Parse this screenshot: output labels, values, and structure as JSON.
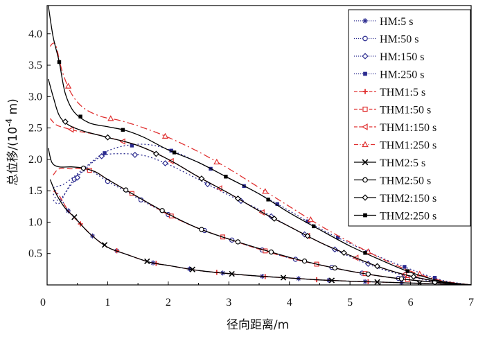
{
  "chart_data": {
    "type": "line",
    "xlabel": "径向距离/m",
    "ylabel_prefix": "总位移/(10",
    "ylabel_exp": "-4",
    "ylabel_suffix": " m)",
    "xlim": [
      0,
      7
    ],
    "ylim": [
      0,
      4.45
    ],
    "xticks": [
      {
        "value": 0,
        "label": "0"
      },
      {
        "value": 1,
        "label": "1"
      },
      {
        "value": 2,
        "label": "2"
      },
      {
        "value": 3,
        "label": "3"
      },
      {
        "value": 4,
        "label": "4"
      },
      {
        "value": 5,
        "label": "5"
      },
      {
        "value": 6,
        "label": "6"
      },
      {
        "value": 7,
        "label": "7"
      }
    ],
    "yticks": [
      {
        "value": 0.5,
        "label": "0.5"
      },
      {
        "value": 1.0,
        "label": "1.0"
      },
      {
        "value": 1.5,
        "label": "1.5"
      },
      {
        "value": 2.0,
        "label": "2.0"
      },
      {
        "value": 2.5,
        "label": "2.5"
      },
      {
        "value": 3.0,
        "label": "3.0"
      },
      {
        "value": 3.5,
        "label": "3.5"
      },
      {
        "value": 4.0,
        "label": "4.0"
      }
    ],
    "grid": false,
    "legend_position": "top-right",
    "series": [
      {
        "name": "HM:5 s",
        "color": "#2b2b8f",
        "dash": "2,3",
        "marker": "asterisk",
        "points": [
          [
            0.1,
            1.55
          ],
          [
            0.2,
            1.42
          ],
          [
            0.35,
            1.18
          ],
          [
            0.5,
            1.02
          ],
          [
            0.75,
            0.78
          ],
          [
            1.0,
            0.6
          ],
          [
            1.3,
            0.49
          ],
          [
            1.7,
            0.36
          ],
          [
            2.0,
            0.31
          ],
          [
            2.5,
            0.23
          ],
          [
            3.0,
            0.18
          ],
          [
            3.5,
            0.14
          ],
          [
            4.0,
            0.11
          ],
          [
            4.5,
            0.08
          ],
          [
            5.0,
            0.06
          ],
          [
            5.5,
            0.045
          ],
          [
            6.0,
            0.03
          ],
          [
            6.5,
            0.015
          ],
          [
            7.0,
            0.0
          ]
        ],
        "marker_x": [
          0.35,
          0.75,
          1.15,
          1.75,
          2.35,
          2.9,
          3.55,
          4.15,
          4.65,
          5.25,
          5.85,
          6.4
        ]
      },
      {
        "name": "HM:50 s",
        "color": "#2b2b8f",
        "dash": "2,3",
        "marker": "circle",
        "points": [
          [
            0.1,
            1.35
          ],
          [
            0.2,
            1.3
          ],
          [
            0.35,
            1.55
          ],
          [
            0.5,
            1.75
          ],
          [
            0.7,
            1.82
          ],
          [
            1.0,
            1.65
          ],
          [
            1.5,
            1.38
          ],
          [
            2.0,
            1.12
          ],
          [
            2.5,
            0.9
          ],
          [
            3.0,
            0.73
          ],
          [
            3.5,
            0.57
          ],
          [
            4.0,
            0.43
          ],
          [
            4.5,
            0.32
          ],
          [
            5.0,
            0.22
          ],
          [
            5.5,
            0.14
          ],
          [
            6.0,
            0.08
          ],
          [
            6.5,
            0.035
          ],
          [
            7.0,
            0.0
          ]
        ],
        "marker_x": [
          0.45,
          1.0,
          1.55,
          2.0,
          2.6,
          3.05,
          3.55,
          4.1,
          4.7,
          5.2,
          5.8
        ]
      },
      {
        "name": "HM:150 s",
        "color": "#2b2b8f",
        "dash": "2,3",
        "marker": "diamond",
        "points": [
          [
            0.1,
            1.45
          ],
          [
            0.2,
            1.35
          ],
          [
            0.4,
            1.6
          ],
          [
            0.6,
            1.82
          ],
          [
            0.9,
            2.05
          ],
          [
            1.2,
            2.09
          ],
          [
            1.6,
            2.06
          ],
          [
            2.0,
            1.92
          ],
          [
            2.5,
            1.68
          ],
          [
            3.0,
            1.43
          ],
          [
            3.5,
            1.2
          ],
          [
            4.0,
            0.93
          ],
          [
            4.5,
            0.68
          ],
          [
            5.0,
            0.45
          ],
          [
            5.5,
            0.26
          ],
          [
            6.0,
            0.13
          ],
          [
            6.5,
            0.04
          ],
          [
            7.0,
            0.0
          ]
        ],
        "marker_x": [
          0.5,
          0.9,
          1.45,
          1.95,
          2.65,
          3.2,
          3.7,
          4.25,
          4.75,
          5.3,
          5.9,
          6.4
        ]
      },
      {
        "name": "HM:250 s",
        "color": "#2b2b8f",
        "dash": "2,3",
        "marker": "square",
        "points": [
          [
            0.1,
            1.55
          ],
          [
            0.3,
            1.62
          ],
          [
            0.6,
            1.85
          ],
          [
            0.9,
            2.08
          ],
          [
            1.2,
            2.2
          ],
          [
            1.6,
            2.24
          ],
          [
            2.0,
            2.16
          ],
          [
            2.5,
            1.95
          ],
          [
            3.0,
            1.7
          ],
          [
            3.5,
            1.45
          ],
          [
            4.0,
            1.18
          ],
          [
            4.5,
            0.9
          ],
          [
            5.0,
            0.66
          ],
          [
            5.5,
            0.44
          ],
          [
            6.0,
            0.25
          ],
          [
            6.5,
            0.08
          ],
          [
            7.0,
            0.0
          ]
        ],
        "marker_x": [
          0.95,
          1.4,
          2.05,
          2.7,
          3.25,
          3.8,
          4.3,
          4.8,
          5.3,
          5.9,
          6.4
        ]
      },
      {
        "name": "THM1:5 s",
        "color": "#e03030",
        "dash": "8,4",
        "marker": "plus",
        "points": [
          [
            0.1,
            1.5
          ],
          [
            0.2,
            1.42
          ],
          [
            0.35,
            1.18
          ],
          [
            0.5,
            1.02
          ],
          [
            0.75,
            0.78
          ],
          [
            1.0,
            0.6
          ],
          [
            1.3,
            0.49
          ],
          [
            1.7,
            0.36
          ],
          [
            2.0,
            0.31
          ],
          [
            2.5,
            0.23
          ],
          [
            3.0,
            0.18
          ],
          [
            3.5,
            0.14
          ],
          [
            4.0,
            0.11
          ],
          [
            4.5,
            0.08
          ],
          [
            5.0,
            0.06
          ],
          [
            5.5,
            0.045
          ],
          [
            6.0,
            0.03
          ],
          [
            6.5,
            0.015
          ],
          [
            7.0,
            0.0
          ]
        ],
        "marker_x": [
          0.55,
          1.15,
          1.8,
          2.8,
          3.6,
          4.45,
          5.3
        ]
      },
      {
        "name": "THM1:50 s",
        "color": "#e03030",
        "dash": "8,4",
        "marker": "square-open",
        "points": [
          [
            0.1,
            1.75
          ],
          [
            0.2,
            1.85
          ],
          [
            0.4,
            1.85
          ],
          [
            0.6,
            1.85
          ],
          [
            0.8,
            1.8
          ],
          [
            1.0,
            1.68
          ],
          [
            1.5,
            1.4
          ],
          [
            2.0,
            1.12
          ],
          [
            2.5,
            0.9
          ],
          [
            3.0,
            0.73
          ],
          [
            3.5,
            0.57
          ],
          [
            4.0,
            0.43
          ],
          [
            4.5,
            0.32
          ],
          [
            5.0,
            0.22
          ],
          [
            5.5,
            0.14
          ],
          [
            6.0,
            0.08
          ],
          [
            6.5,
            0.035
          ],
          [
            7.0,
            0.0
          ]
        ],
        "marker_x": [
          0.7,
          1.4,
          2.05,
          2.9,
          3.6,
          4.45,
          5.25,
          5.95
        ]
      },
      {
        "name": "THM1:150 s",
        "color": "#e03030",
        "dash": "8,4",
        "marker": "triangle-left",
        "points": [
          [
            0.05,
            2.65
          ],
          [
            0.15,
            2.55
          ],
          [
            0.3,
            2.5
          ],
          [
            0.5,
            2.45
          ],
          [
            0.8,
            2.4
          ],
          [
            1.0,
            2.35
          ],
          [
            1.5,
            2.22
          ],
          [
            2.0,
            2.0
          ],
          [
            2.5,
            1.72
          ],
          [
            3.0,
            1.46
          ],
          [
            3.5,
            1.18
          ],
          [
            4.0,
            0.93
          ],
          [
            4.5,
            0.68
          ],
          [
            5.0,
            0.47
          ],
          [
            5.5,
            0.28
          ],
          [
            6.0,
            0.14
          ],
          [
            6.5,
            0.05
          ],
          [
            7.0,
            0.0
          ]
        ],
        "marker_x": [
          0.4,
          1.25,
          2.05,
          2.85,
          3.55,
          4.3,
          5.1,
          5.9
        ]
      },
      {
        "name": "THM1:250 s",
        "color": "#e03030",
        "dash": "10,4,2,4",
        "marker": "triangle-up",
        "points": [
          [
            0.05,
            3.8
          ],
          [
            0.1,
            3.85
          ],
          [
            0.15,
            3.8
          ],
          [
            0.25,
            3.4
          ],
          [
            0.4,
            3.05
          ],
          [
            0.6,
            2.82
          ],
          [
            0.9,
            2.68
          ],
          [
            1.2,
            2.62
          ],
          [
            1.6,
            2.5
          ],
          [
            2.0,
            2.35
          ],
          [
            2.5,
            2.12
          ],
          [
            3.0,
            1.85
          ],
          [
            3.5,
            1.55
          ],
          [
            4.0,
            1.25
          ],
          [
            4.5,
            0.95
          ],
          [
            5.0,
            0.68
          ],
          [
            5.5,
            0.43
          ],
          [
            6.0,
            0.22
          ],
          [
            6.5,
            0.07
          ],
          [
            7.0,
            0.0
          ]
        ],
        "marker_x": [
          0.35,
          1.05,
          1.95,
          2.8,
          3.6,
          4.35,
          5.3,
          6.15
        ]
      },
      {
        "name": "THM2:5 s",
        "color": "#000000",
        "dash": "",
        "marker": "x",
        "points": [
          [
            0.05,
            1.68
          ],
          [
            0.15,
            1.45
          ],
          [
            0.3,
            1.22
          ],
          [
            0.45,
            1.08
          ],
          [
            0.7,
            0.82
          ],
          [
            1.0,
            0.6
          ],
          [
            1.3,
            0.49
          ],
          [
            1.7,
            0.36
          ],
          [
            2.0,
            0.31
          ],
          [
            2.5,
            0.23
          ],
          [
            3.0,
            0.18
          ],
          [
            3.5,
            0.14
          ],
          [
            4.0,
            0.11
          ],
          [
            4.5,
            0.08
          ],
          [
            5.0,
            0.06
          ],
          [
            5.5,
            0.045
          ],
          [
            6.0,
            0.03
          ],
          [
            6.5,
            0.015
          ],
          [
            7.0,
            0.0
          ]
        ],
        "marker_x": [
          0.45,
          0.95,
          1.65,
          2.4,
          3.05,
          3.9,
          4.7,
          5.45,
          6.15
        ]
      },
      {
        "name": "THM2:50 s",
        "color": "#000000",
        "dash": "",
        "marker": "circle-open",
        "points": [
          [
            0.02,
            2.18
          ],
          [
            0.08,
            1.95
          ],
          [
            0.2,
            1.88
          ],
          [
            0.4,
            1.88
          ],
          [
            0.6,
            1.86
          ],
          [
            0.8,
            1.8
          ],
          [
            1.0,
            1.68
          ],
          [
            1.5,
            1.4
          ],
          [
            2.0,
            1.13
          ],
          [
            2.5,
            0.9
          ],
          [
            3.0,
            0.73
          ],
          [
            3.5,
            0.58
          ],
          [
            4.0,
            0.44
          ],
          [
            4.5,
            0.32
          ],
          [
            5.0,
            0.22
          ],
          [
            5.5,
            0.14
          ],
          [
            6.0,
            0.08
          ],
          [
            6.5,
            0.035
          ],
          [
            7.0,
            0.0
          ]
        ],
        "marker_x": [
          0.6,
          1.3,
          1.9,
          2.55,
          3.15,
          3.7,
          4.25,
          4.75,
          5.3,
          5.85,
          6.4
        ]
      },
      {
        "name": "THM2:150 s",
        "color": "#000000",
        "dash": "",
        "marker": "diamond-open",
        "points": [
          [
            0.02,
            3.28
          ],
          [
            0.1,
            3.0
          ],
          [
            0.2,
            2.7
          ],
          [
            0.35,
            2.55
          ],
          [
            0.6,
            2.45
          ],
          [
            1.0,
            2.35
          ],
          [
            1.5,
            2.22
          ],
          [
            2.0,
            2.0
          ],
          [
            2.5,
            1.72
          ],
          [
            3.0,
            1.46
          ],
          [
            3.5,
            1.18
          ],
          [
            4.0,
            0.93
          ],
          [
            4.5,
            0.68
          ],
          [
            5.0,
            0.47
          ],
          [
            5.5,
            0.28
          ],
          [
            6.0,
            0.14
          ],
          [
            6.5,
            0.05
          ],
          [
            7.0,
            0.0
          ]
        ],
        "marker_x": [
          0.3,
          1.0,
          1.8,
          2.55,
          3.15,
          3.75,
          4.3,
          4.9,
          5.45,
          6.05
        ]
      },
      {
        "name": "THM2:250 s",
        "color": "#000000",
        "dash": "",
        "marker": "square",
        "points": [
          [
            0.02,
            4.45
          ],
          [
            0.1,
            3.95
          ],
          [
            0.2,
            3.55
          ],
          [
            0.3,
            3.05
          ],
          [
            0.45,
            2.75
          ],
          [
            0.7,
            2.58
          ],
          [
            1.0,
            2.52
          ],
          [
            1.3,
            2.46
          ],
          [
            1.6,
            2.35
          ],
          [
            2.0,
            2.15
          ],
          [
            2.5,
            1.95
          ],
          [
            3.0,
            1.7
          ],
          [
            3.5,
            1.45
          ],
          [
            4.0,
            1.15
          ],
          [
            4.5,
            0.88
          ],
          [
            5.0,
            0.62
          ],
          [
            5.5,
            0.4
          ],
          [
            6.0,
            0.2
          ],
          [
            6.5,
            0.06
          ],
          [
            7.0,
            0.0
          ]
        ],
        "marker_x": [
          0.2,
          0.55,
          1.25,
          2.1,
          2.95,
          3.65,
          4.4,
          5.25,
          5.95
        ]
      }
    ]
  }
}
